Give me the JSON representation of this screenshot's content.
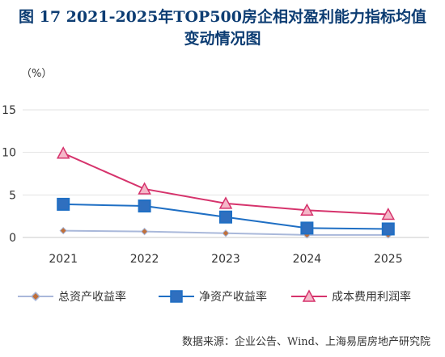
{
  "header": {
    "title_line1": "图 17 2021-2025年TOP500房企相对盈利能力指标均值",
    "title_line2": "变动情况图"
  },
  "footer": {
    "source": "数据来源：企业公告、Wind、上海易居房地产研究院"
  },
  "chart_data": {
    "type": "line",
    "title": "",
    "xlabel": "",
    "ylabel": "（%）",
    "categories": [
      "2021",
      "2022",
      "2023",
      "2024",
      "2025"
    ],
    "ylim": [
      0,
      15
    ],
    "yticks": [
      "0",
      "5",
      "10",
      "15"
    ],
    "grid": true,
    "legend_position": "bottom",
    "series": [
      {
        "name": "总资产收益率",
        "values": [
          0.8,
          0.7,
          0.5,
          0.3,
          0.3
        ],
        "color": "#a9b8da",
        "marker": "diamond",
        "marker_color": "#c0703a"
      },
      {
        "name": "净资产收益率",
        "values": [
          3.9,
          3.7,
          2.4,
          1.1,
          1.0
        ],
        "color": "#1f6fc4",
        "marker": "square",
        "marker_color": "#2f6fbf"
      },
      {
        "name": "成本费用利润率",
        "values": [
          9.9,
          5.7,
          4.0,
          3.2,
          2.7
        ],
        "color": "#d6336c",
        "marker": "triangle",
        "marker_color": "#f4b7c8"
      }
    ]
  }
}
